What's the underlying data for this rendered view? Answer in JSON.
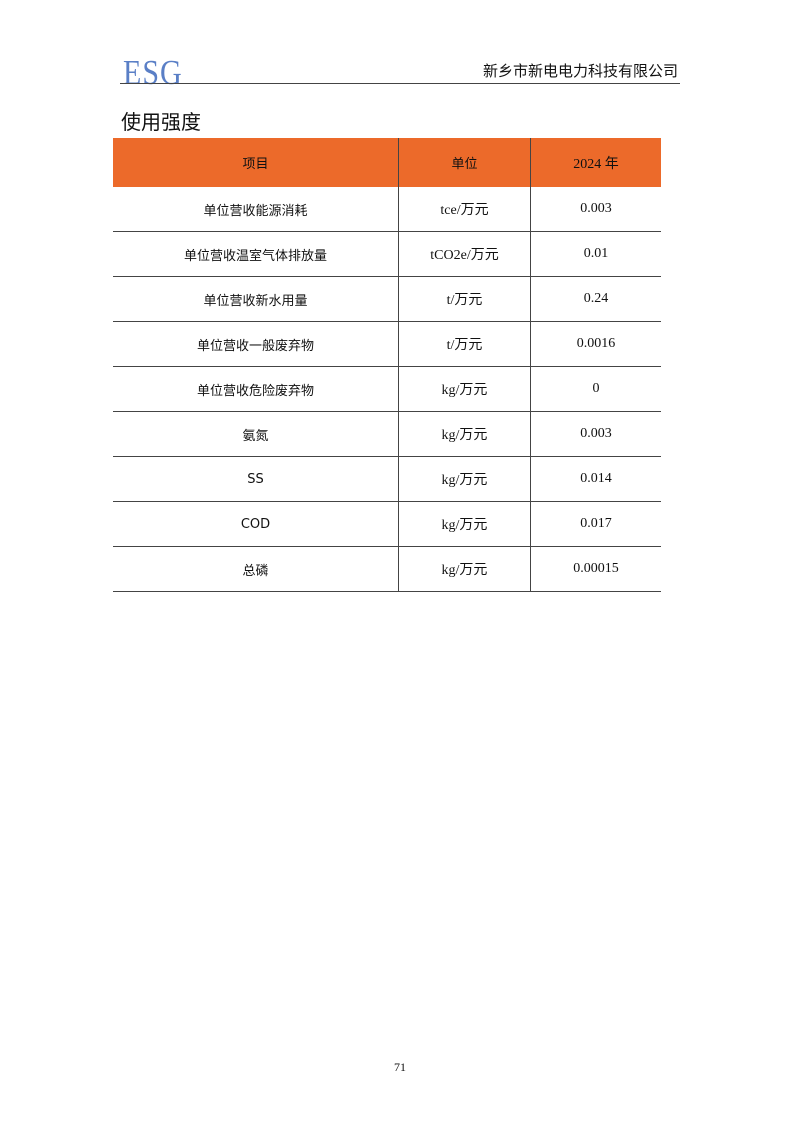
{
  "header": {
    "logo": "ESG",
    "company": "新乡市新电电力科技有限公司"
  },
  "section_title": "使用强度",
  "table": {
    "columns": [
      "项目",
      "单位",
      "2024 年"
    ],
    "rows": [
      [
        "单位营收能源消耗",
        "tce/万元",
        "0.003"
      ],
      [
        "单位营收温室气体排放量",
        "tCO2e/万元",
        "0.01"
      ],
      [
        "单位营收新水用量",
        "t/万元",
        "0.24"
      ],
      [
        "单位营收一般废弃物",
        "t/万元",
        "0.0016"
      ],
      [
        "单位营收危险废弃物",
        "kg/万元",
        "0"
      ],
      [
        "氨氮",
        "kg/万元",
        "0.003"
      ],
      [
        "SS",
        "kg/万元",
        "0.014"
      ],
      [
        "COD",
        "kg/万元",
        "0.017"
      ],
      [
        "总磷",
        "kg/万元",
        "0.00015"
      ]
    ],
    "header_color": "#ec6a2a"
  },
  "page_number": "71"
}
